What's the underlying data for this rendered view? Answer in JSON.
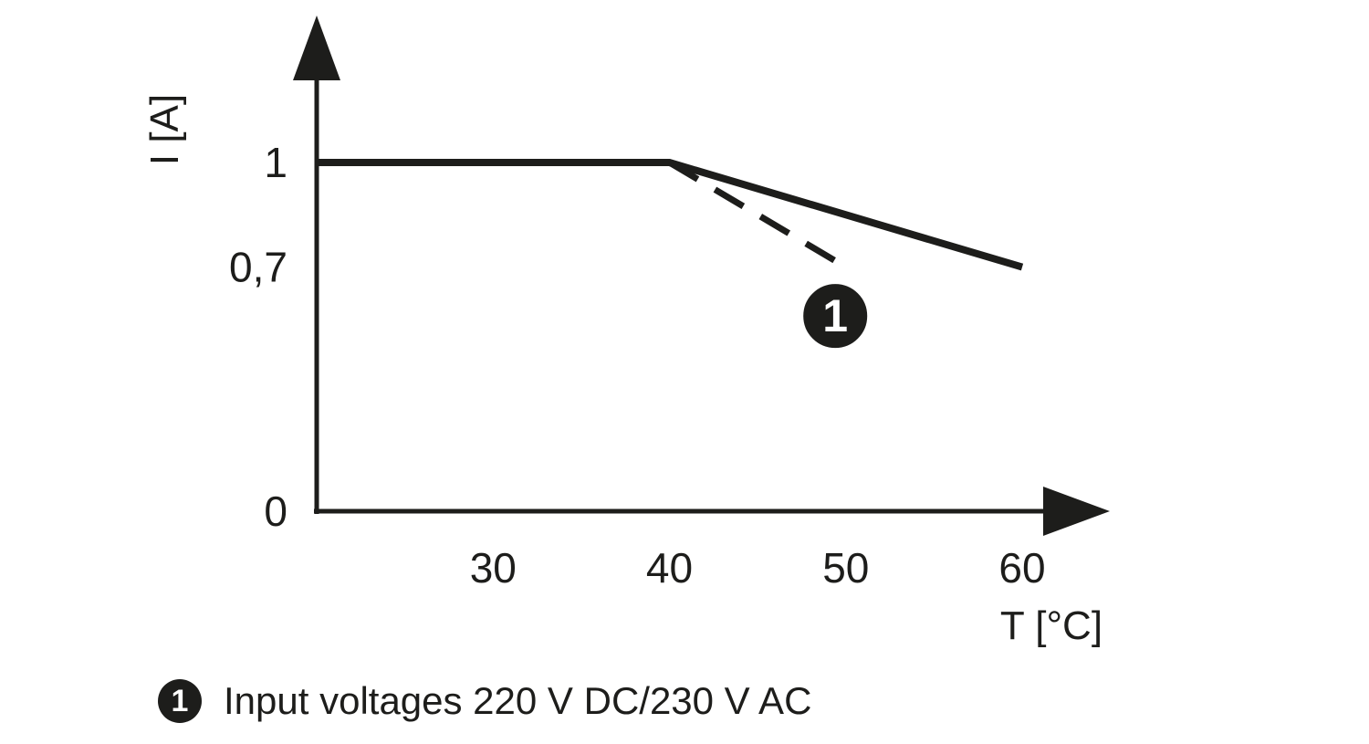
{
  "chart_data": {
    "type": "line",
    "title": "",
    "xlabel": "T [°C]",
    "ylabel": "I [A]",
    "x_range": [
      20,
      60
    ],
    "y_range": [
      0,
      1.15
    ],
    "x_ticks": [
      30,
      40,
      50,
      60
    ],
    "y_ticks": [
      {
        "value": 1,
        "label": "1"
      },
      {
        "value": 0.7,
        "label": "0,7"
      },
      {
        "value": 0,
        "label": "0"
      }
    ],
    "grid": false,
    "series": [
      {
        "name": "derating-curve-standard",
        "style": "solid",
        "points": [
          [
            20,
            1
          ],
          [
            40,
            1
          ],
          [
            60,
            0.7
          ]
        ]
      },
      {
        "name": "derating-curve-input-220vdc-230vac",
        "style": "dashed",
        "points": [
          [
            40,
            1
          ],
          [
            50,
            0.7
          ]
        ]
      }
    ],
    "marker": {
      "label": "1",
      "t": 49.4,
      "i": 0.56
    }
  },
  "legend": {
    "marker": "1",
    "text": "Input voltages 220 V DC/230 V AC"
  },
  "colors": {
    "ink": "#1d1d1b",
    "background": "#ffffff"
  }
}
